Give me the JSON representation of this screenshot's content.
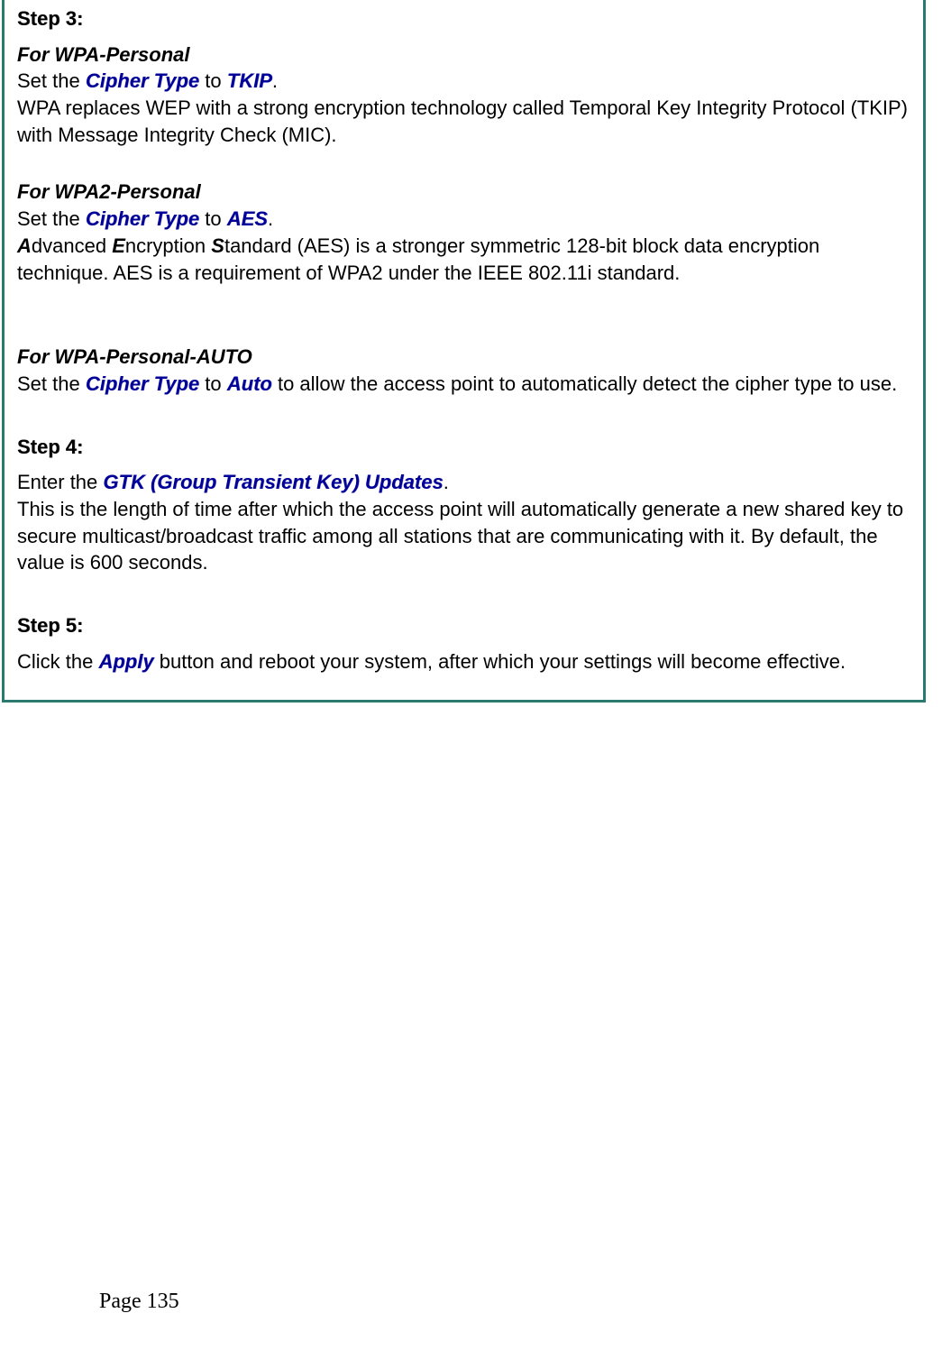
{
  "box": {
    "border_color": "#2a7a6f",
    "border_width": 3
  },
  "colors": {
    "highlight": "#000099",
    "text": "#000000",
    "background": "#ffffff"
  },
  "step3": {
    "heading": "Step 3:",
    "section1": {
      "title": "For WPA-Personal",
      "line1_pre": "Set the ",
      "cipher_type": "Cipher Type",
      "line1_mid": " to ",
      "tkip": "TKIP",
      "line1_post": ".",
      "desc": "WPA replaces WEP with a strong encryption technology called Temporal Key Integrity Protocol (TKIP) with Message Integrity Check (MIC)."
    },
    "section2": {
      "title": "For WPA2-Personal",
      "line1_pre": "Set the ",
      "cipher_type": "Cipher Type",
      "line1_mid": " to ",
      "aes": "AES",
      "line1_post": ".",
      "desc_a": "A",
      "desc_dvanced": "dvanced ",
      "desc_e": "E",
      "desc_ncryption": "ncryption ",
      "desc_s": "S",
      "desc_rest": "tandard (AES) is a stronger symmetric 128-bit block data encryption technique. AES is a requirement of WPA2 under the IEEE 802.11i standard."
    },
    "section3": {
      "title": "For WPA-Personal-AUTO",
      "line1_pre": "Set the ",
      "cipher_type": "Cipher Type",
      "line1_mid": " to ",
      "auto": "Auto",
      "line1_post": " to allow the access point to automatically detect the cipher type to use."
    }
  },
  "step4": {
    "heading": "Step 4:",
    "line1_pre": "Enter the ",
    "gtk": "GTK (Group Transient Key) Updates",
    "line1_post": ".",
    "desc": "This is the length of time after which the access point will automatically generate a new shared key to secure multicast/broadcast traffic among all stations that are communicating with it. By default, the value is 600 seconds."
  },
  "step5": {
    "heading": "Step 5:",
    "line1_pre": "Click the ",
    "apply": "Apply",
    "line1_post": " button and reboot your system, after which your settings will become effective."
  },
  "page_number": "Page 135"
}
